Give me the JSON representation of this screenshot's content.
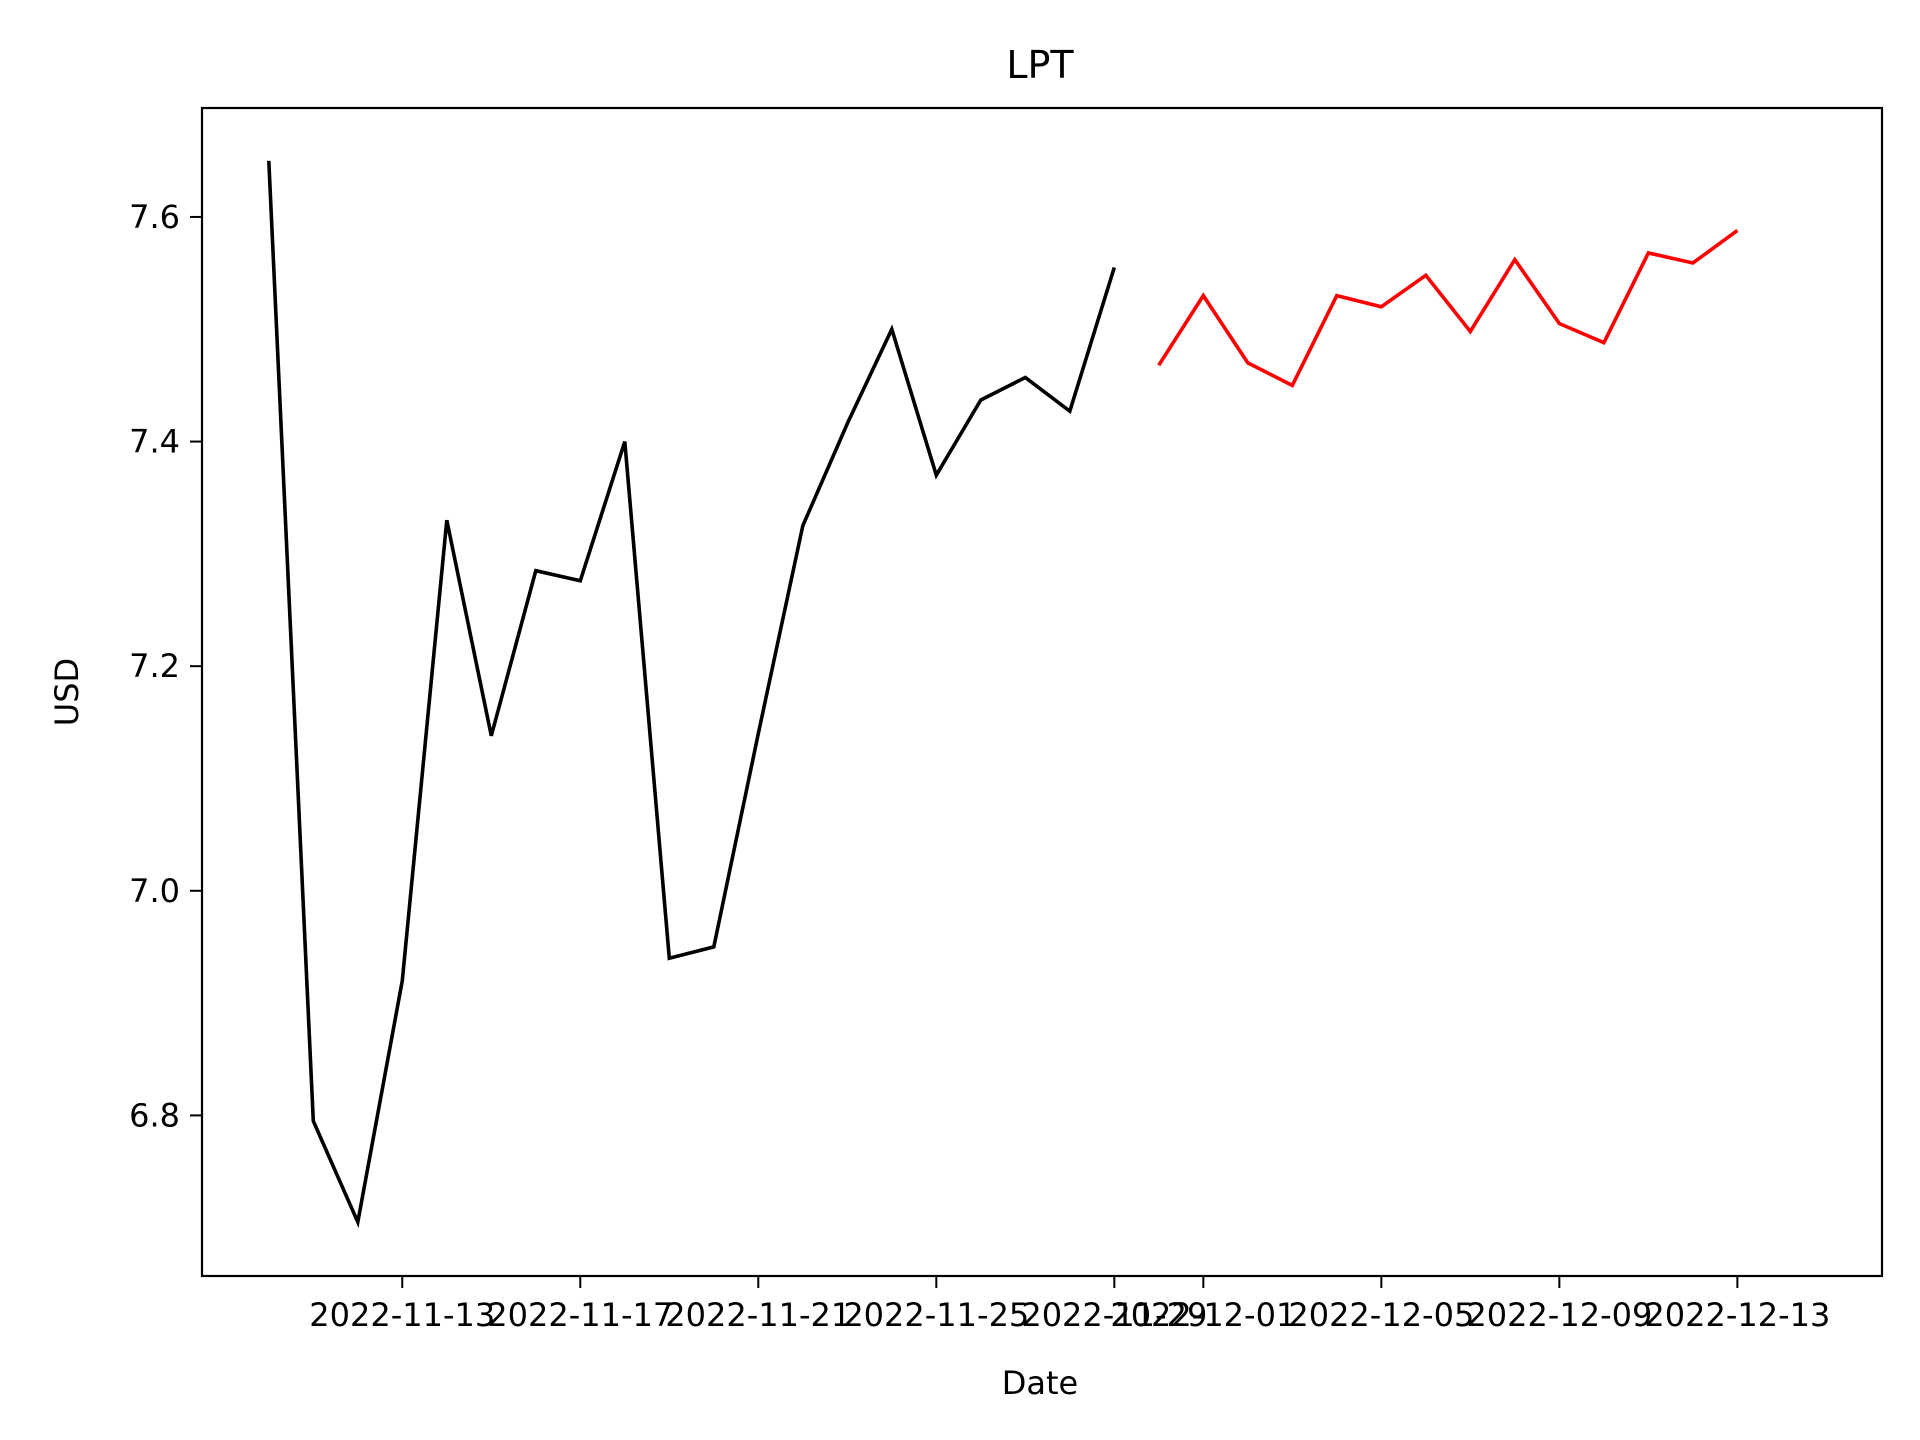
{
  "chart_data": {
    "type": "line",
    "title": "LPT",
    "xlabel": "Date",
    "ylabel": "USD",
    "xlim": [
      "2022-11-08T12:00",
      "2022-12-16T06:00"
    ],
    "ylim": [
      6.657,
      7.697
    ],
    "x_ticks": [
      "2022-11-13",
      "2022-11-17",
      "2022-11-21",
      "2022-11-25",
      "2022-11-29",
      "2022-12-01",
      "2022-12-05",
      "2022-12-09",
      "2022-12-13"
    ],
    "y_ticks": [
      "6.8",
      "7.0",
      "7.2",
      "7.4",
      "7.6"
    ],
    "grid": false,
    "legend": false,
    "series": [
      {
        "color": "#000000",
        "points": [
          {
            "x": "2022-11-10",
            "y": 7.65
          },
          {
            "x": "2022-11-11",
            "y": 6.795
          },
          {
            "x": "2022-11-12",
            "y": 6.705
          },
          {
            "x": "2022-11-13",
            "y": 6.92
          },
          {
            "x": "2022-11-14",
            "y": 7.33
          },
          {
            "x": "2022-11-15",
            "y": 7.138
          },
          {
            "x": "2022-11-16",
            "y": 7.285
          },
          {
            "x": "2022-11-17",
            "y": 7.276
          },
          {
            "x": "2022-11-18",
            "y": 7.4
          },
          {
            "x": "2022-11-19",
            "y": 6.94
          },
          {
            "x": "2022-11-20",
            "y": 6.95
          },
          {
            "x": "2022-11-21",
            "y": 7.14
          },
          {
            "x": "2022-11-22",
            "y": 7.325
          },
          {
            "x": "2022-11-23",
            "y": 7.416
          },
          {
            "x": "2022-11-24",
            "y": 7.5
          },
          {
            "x": "2022-11-25",
            "y": 7.37
          },
          {
            "x": "2022-11-26",
            "y": 7.437
          },
          {
            "x": "2022-11-27",
            "y": 7.457
          },
          {
            "x": "2022-11-28",
            "y": 7.427
          },
          {
            "x": "2022-11-29",
            "y": 7.555
          }
        ]
      },
      {
        "color": "#ff0000",
        "points": [
          {
            "x": "2022-11-30",
            "y": 7.468
          },
          {
            "x": "2022-12-01",
            "y": 7.53
          },
          {
            "x": "2022-12-02",
            "y": 7.47
          },
          {
            "x": "2022-12-03",
            "y": 7.45
          },
          {
            "x": "2022-12-04",
            "y": 7.53
          },
          {
            "x": "2022-12-05",
            "y": 7.52
          },
          {
            "x": "2022-12-06",
            "y": 7.548
          },
          {
            "x": "2022-12-07",
            "y": 7.498
          },
          {
            "x": "2022-12-08",
            "y": 7.562
          },
          {
            "x": "2022-12-09",
            "y": 7.505
          },
          {
            "x": "2022-12-10",
            "y": 7.488
          },
          {
            "x": "2022-12-11",
            "y": 7.568
          },
          {
            "x": "2022-12-12",
            "y": 7.559
          },
          {
            "x": "2022-12-13",
            "y": 7.588
          }
        ]
      }
    ]
  }
}
